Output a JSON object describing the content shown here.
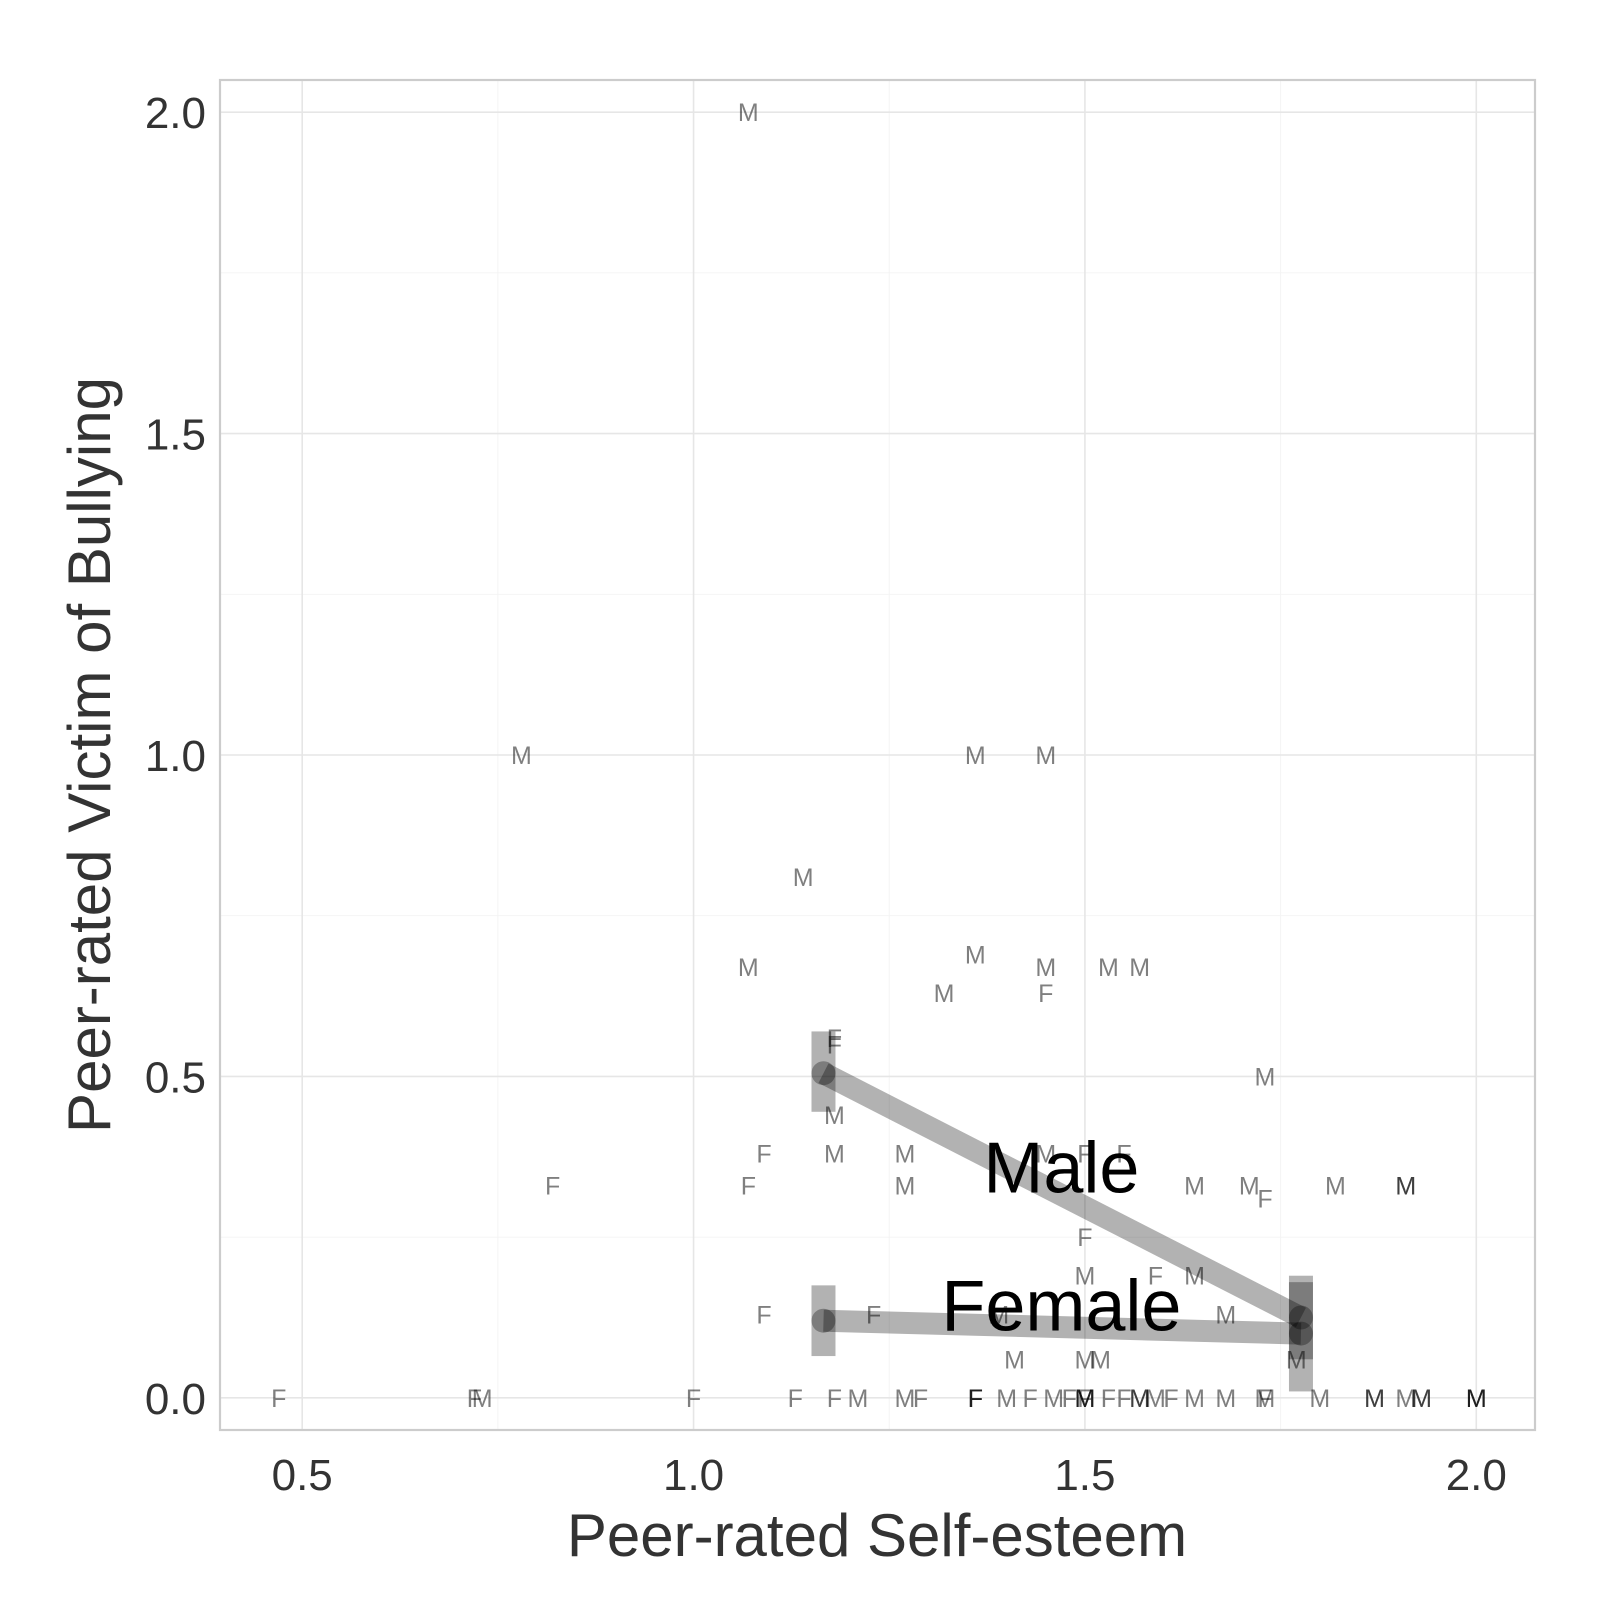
{
  "chart_data": {
    "type": "scatter",
    "title": "",
    "xlabel": "Peer-rated Self-esteem",
    "ylabel": "Peer-rated Victim of Bullying",
    "xlim": [
      0.395,
      2.075
    ],
    "ylim": [
      -0.05,
      2.05
    ],
    "xticks": [
      0.5,
      1.0,
      1.5,
      2.0
    ],
    "xtick_labels": [
      "0.5",
      "1.0",
      "1.5",
      "2.0"
    ],
    "yticks": [
      0.0,
      0.5,
      1.0,
      1.5,
      2.0
    ],
    "ytick_labels": [
      "0.0",
      "0.5",
      "1.0",
      "1.5",
      "2.0"
    ],
    "grid": true,
    "point_labels": [
      {
        "x": 1.07,
        "y": 2.0,
        "label": "M"
      },
      {
        "x": 0.78,
        "y": 1.0,
        "label": "M"
      },
      {
        "x": 1.36,
        "y": 1.0,
        "label": "M"
      },
      {
        "x": 1.45,
        "y": 1.0,
        "label": "M"
      },
      {
        "x": 1.14,
        "y": 0.81,
        "label": "M"
      },
      {
        "x": 1.36,
        "y": 0.69,
        "label": "M"
      },
      {
        "x": 1.07,
        "y": 0.67,
        "label": "M"
      },
      {
        "x": 1.45,
        "y": 0.67,
        "label": "M"
      },
      {
        "x": 1.53,
        "y": 0.67,
        "label": "M"
      },
      {
        "x": 1.57,
        "y": 0.67,
        "label": "M"
      },
      {
        "x": 1.32,
        "y": 0.63,
        "label": "M"
      },
      {
        "x": 1.45,
        "y": 0.63,
        "label": "F"
      },
      {
        "x": 1.18,
        "y": 0.56,
        "label": "F"
      },
      {
        "x": 1.18,
        "y": 0.55,
        "label": "F"
      },
      {
        "x": 1.73,
        "y": 0.5,
        "label": "M"
      },
      {
        "x": 1.18,
        "y": 0.44,
        "label": "M"
      },
      {
        "x": 1.09,
        "y": 0.38,
        "label": "F"
      },
      {
        "x": 1.18,
        "y": 0.38,
        "label": "M"
      },
      {
        "x": 1.27,
        "y": 0.38,
        "label": "M"
      },
      {
        "x": 1.45,
        "y": 0.38,
        "label": "M"
      },
      {
        "x": 1.5,
        "y": 0.38,
        "label": "F"
      },
      {
        "x": 1.55,
        "y": 0.38,
        "label": "F"
      },
      {
        "x": 0.82,
        "y": 0.33,
        "label": "F"
      },
      {
        "x": 1.07,
        "y": 0.33,
        "label": "F"
      },
      {
        "x": 1.27,
        "y": 0.33,
        "label": "M"
      },
      {
        "x": 1.64,
        "y": 0.33,
        "label": "M"
      },
      {
        "x": 1.71,
        "y": 0.33,
        "label": "M"
      },
      {
        "x": 1.73,
        "y": 0.31,
        "label": "F"
      },
      {
        "x": 1.82,
        "y": 0.33,
        "label": "M"
      },
      {
        "x": 1.91,
        "y": 0.33,
        "label": "M"
      },
      {
        "x": 1.91,
        "y": 0.33,
        "label": "M"
      },
      {
        "x": 1.5,
        "y": 0.25,
        "label": "F"
      },
      {
        "x": 1.5,
        "y": 0.19,
        "label": "M"
      },
      {
        "x": 1.59,
        "y": 0.19,
        "label": "F"
      },
      {
        "x": 1.64,
        "y": 0.19,
        "label": "M"
      },
      {
        "x": 1.09,
        "y": 0.13,
        "label": "F"
      },
      {
        "x": 1.23,
        "y": 0.13,
        "label": "F"
      },
      {
        "x": 1.39,
        "y": 0.13,
        "label": "M"
      },
      {
        "x": 1.68,
        "y": 0.13,
        "label": "M"
      },
      {
        "x": 1.41,
        "y": 0.06,
        "label": "M"
      },
      {
        "x": 1.5,
        "y": 0.06,
        "label": "M"
      },
      {
        "x": 1.52,
        "y": 0.06,
        "label": "M"
      },
      {
        "x": 1.77,
        "y": 0.06,
        "label": "M"
      },
      {
        "x": 0.47,
        "y": 0.0,
        "label": "F"
      },
      {
        "x": 0.72,
        "y": 0.0,
        "label": "F"
      },
      {
        "x": 0.73,
        "y": 0.0,
        "label": "M"
      },
      {
        "x": 1.0,
        "y": 0.0,
        "label": "F"
      },
      {
        "x": 1.13,
        "y": 0.0,
        "label": "F"
      },
      {
        "x": 1.18,
        "y": 0.0,
        "label": "F"
      },
      {
        "x": 1.21,
        "y": 0.0,
        "label": "M"
      },
      {
        "x": 1.27,
        "y": 0.0,
        "label": "M"
      },
      {
        "x": 1.29,
        "y": 0.0,
        "label": "F"
      },
      {
        "x": 1.36,
        "y": 0.0,
        "label": "F"
      },
      {
        "x": 1.36,
        "y": 0.0,
        "label": "F"
      },
      {
        "x": 1.36,
        "y": 0.0,
        "label": "F"
      },
      {
        "x": 1.4,
        "y": 0.0,
        "label": "M"
      },
      {
        "x": 1.43,
        "y": 0.0,
        "label": "F"
      },
      {
        "x": 1.46,
        "y": 0.0,
        "label": "M"
      },
      {
        "x": 1.48,
        "y": 0.0,
        "label": "F"
      },
      {
        "x": 1.5,
        "y": 0.0,
        "label": "M"
      },
      {
        "x": 1.5,
        "y": 0.0,
        "label": "M"
      },
      {
        "x": 1.5,
        "y": 0.0,
        "label": "M"
      },
      {
        "x": 1.5,
        "y": 0.0,
        "label": "F"
      },
      {
        "x": 1.53,
        "y": 0.0,
        "label": "F"
      },
      {
        "x": 1.55,
        "y": 0.0,
        "label": "F"
      },
      {
        "x": 1.57,
        "y": 0.0,
        "label": "M"
      },
      {
        "x": 1.57,
        "y": 0.0,
        "label": "M"
      },
      {
        "x": 1.59,
        "y": 0.0,
        "label": "M"
      },
      {
        "x": 1.61,
        "y": 0.0,
        "label": "F"
      },
      {
        "x": 1.64,
        "y": 0.0,
        "label": "M"
      },
      {
        "x": 1.68,
        "y": 0.0,
        "label": "M"
      },
      {
        "x": 1.73,
        "y": 0.0,
        "label": "F"
      },
      {
        "x": 1.73,
        "y": 0.0,
        "label": "M"
      },
      {
        "x": 1.8,
        "y": 0.0,
        "label": "M"
      },
      {
        "x": 1.87,
        "y": 0.0,
        "label": "M"
      },
      {
        "x": 1.87,
        "y": 0.0,
        "label": "M"
      },
      {
        "x": 1.91,
        "y": 0.0,
        "label": "M"
      },
      {
        "x": 1.93,
        "y": 0.0,
        "label": "M"
      },
      {
        "x": 1.93,
        "y": 0.0,
        "label": "M"
      },
      {
        "x": 2.0,
        "y": 0.0,
        "label": "M"
      },
      {
        "x": 2.0,
        "y": 0.0,
        "label": "M"
      },
      {
        "x": 2.0,
        "y": 0.0,
        "label": "M"
      }
    ],
    "series": [
      {
        "name": "Male",
        "points": [
          {
            "x": 1.166,
            "y": 0.505,
            "ymin": 0.445,
            "ymax": 0.57
          },
          {
            "x": 1.776,
            "y": 0.125,
            "ymin": 0.06,
            "ymax": 0.19
          }
        ],
        "label_at": {
          "x": 1.47,
          "y": 0.36
        }
      },
      {
        "name": "Female",
        "points": [
          {
            "x": 1.166,
            "y": 0.12,
            "ymin": 0.065,
            "ymax": 0.175
          },
          {
            "x": 1.776,
            "y": 0.1,
            "ymin": 0.01,
            "ymax": 0.18
          }
        ],
        "label_at": {
          "x": 1.47,
          "y": 0.145
        }
      }
    ]
  }
}
